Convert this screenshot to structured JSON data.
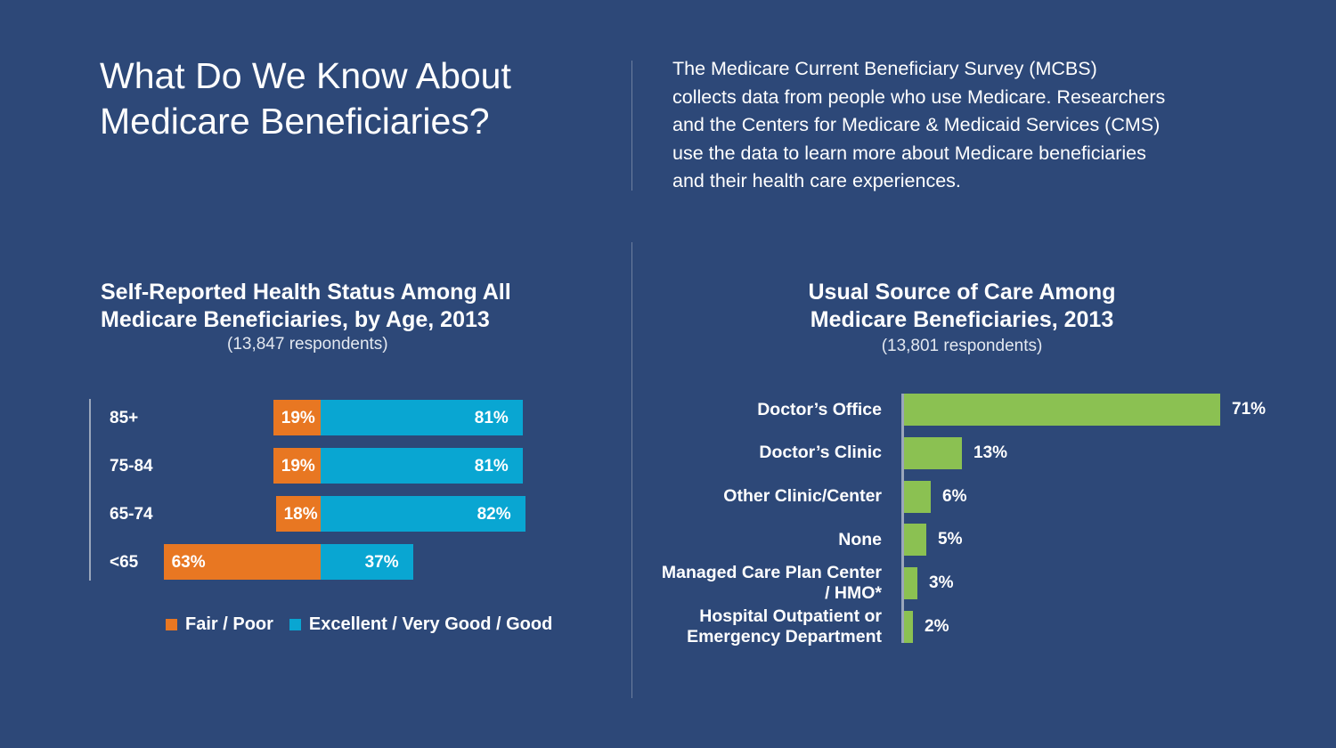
{
  "header": {
    "title_line1": "What Do We Know About",
    "title_line2": "Medicare Beneficiaries?",
    "intro_lines": [
      "The Medicare Current Beneficiary Survey (MCBS)",
      "collects data from people who use Medicare. Researchers",
      "and the Centers for Medicare & Medicaid Services (CMS)",
      "use the data to learn more about Medicare beneficiaries",
      "and their health care experiences."
    ]
  },
  "chart_data": [
    {
      "type": "bar",
      "orientation": "horizontal",
      "stacked": true,
      "title_lines": [
        "Self-Reported Health Status Among All",
        "Medicare Beneficiaries, by Age, 2013"
      ],
      "subtitle": "(13,847 respondents)",
      "categories": [
        "85+",
        "75-84",
        "65-74",
        "<65"
      ],
      "series": [
        {
          "name": "Fair / Poor",
          "color": "#e87722",
          "values": [
            19,
            19,
            18,
            63
          ],
          "labels": [
            "19%",
            "19%",
            "18%",
            "63%"
          ]
        },
        {
          "name": "Excellent / Very Good / Good",
          "color": "#09a6d2",
          "values": [
            81,
            81,
            82,
            37
          ],
          "labels": [
            "81%",
            "81%",
            "82%",
            "37%"
          ]
        }
      ],
      "legend": "bottom",
      "grid": false
    },
    {
      "type": "bar",
      "orientation": "horizontal",
      "title_lines": [
        "Usual Source of Care Among",
        "Medicare Beneficiaries, 2013"
      ],
      "subtitle": "(13,801 respondents)",
      "categories": [
        [
          "Doctor’s Office"
        ],
        [
          "Doctor’s Clinic"
        ],
        [
          "Other Clinic/Center"
        ],
        [
          "None"
        ],
        [
          "Managed Care Plan Center",
          "/ HMO*"
        ],
        [
          "Hospital Outpatient or",
          "Emergency Department"
        ]
      ],
      "values": [
        71,
        13,
        6,
        5,
        3,
        2
      ],
      "labels": [
        "71%",
        "13%",
        "6%",
        "5%",
        "3%",
        "2%"
      ],
      "color": "#8bc152",
      "grid": false
    }
  ]
}
